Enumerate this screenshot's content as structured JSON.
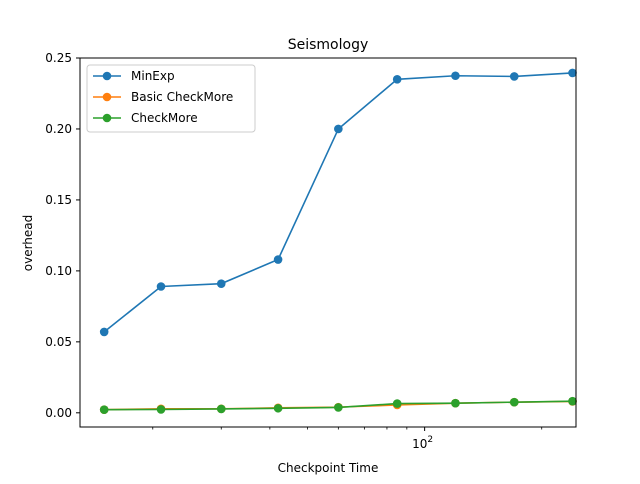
{
  "chart_data": {
    "type": "line",
    "title": "Seismology",
    "xlabel": "Checkpoint Time",
    "ylabel": "overhead",
    "x_scale": "log",
    "xlim": [
      13,
      245
    ],
    "ylim": [
      -0.01,
      0.25
    ],
    "x_major_ticks": [
      {
        "value": 100,
        "label": "10",
        "exp": "2"
      }
    ],
    "x_minor_ticks": [
      20,
      30,
      40,
      50,
      60,
      70,
      80,
      90,
      200
    ],
    "y_ticks": [
      0.0,
      0.05,
      0.1,
      0.15,
      0.2,
      0.25
    ],
    "y_tick_labels": [
      "0.00",
      "0.05",
      "0.10",
      "0.15",
      "0.20",
      "0.25"
    ],
    "x": [
      15,
      21,
      30,
      42,
      60,
      85,
      120,
      170,
      240
    ],
    "legend": {
      "placement": "top-left"
    },
    "series": [
      {
        "name": "MinExp",
        "color": "#1f77b4",
        "values": [
          0.057,
          0.089,
          0.091,
          0.108,
          0.2,
          0.235,
          0.2375,
          0.237,
          0.2395
        ]
      },
      {
        "name": "Basic CheckMore",
        "color": "#ff7f0e",
        "values": [
          0.0022,
          0.0028,
          0.0028,
          0.0035,
          0.004,
          0.0055,
          0.0068,
          0.0075,
          0.008
        ]
      },
      {
        "name": "CheckMore",
        "color": "#2ca02c",
        "values": [
          0.0022,
          0.0024,
          0.0027,
          0.0032,
          0.0038,
          0.0065,
          0.0068,
          0.0075,
          0.0082
        ]
      }
    ]
  }
}
